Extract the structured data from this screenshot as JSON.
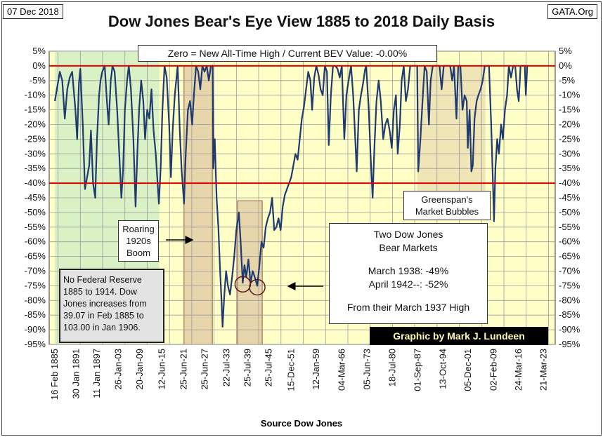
{
  "date_label": "07 Dec 2018",
  "source_label": "GATA.Org",
  "chart_data": {
    "type": "line",
    "title": "Dow Jones Bear's Eye View 1885 to 2018 Daily Basis",
    "xlabel": "Source Dow Jones",
    "ylabel": "",
    "ylim": [
      -95,
      5
    ],
    "y_ticks": [
      5,
      0,
      -5,
      -10,
      -15,
      -20,
      -25,
      -30,
      -35,
      -40,
      -45,
      -50,
      -55,
      -60,
      -65,
      -70,
      -75,
      -80,
      -85,
      -90,
      -95
    ],
    "y_tick_labels": [
      "5%",
      "0%",
      "-5%",
      "-10%",
      "-15%",
      "-20%",
      "-25%",
      "-30%",
      "-35%",
      "-40%",
      "-45%",
      "-50%",
      "-55%",
      "-60%",
      "-65%",
      "-70%",
      "-75%",
      "-80%",
      "-85%",
      "-90%",
      "-95%"
    ],
    "x_ticks": [
      "16 Feb 1885",
      "30 Jan 1891",
      "11 Jan 1897",
      "26-Jan-03",
      "20-Jan-09",
      "12-Jun-15",
      "25-Jun-21",
      "25-Jun-27",
      "22-Jul-33",
      "25-Jul-39",
      "25-Jul-45",
      "15-Dec-51",
      "12-Jan-59",
      "04-Mar-66",
      "05-Jun-73",
      "18-Jul-80",
      "01-Sep-87",
      "13-Oct-94",
      "05-Dec-01",
      "02-Feb-09",
      "24-Mar-16",
      "21-Mar-23"
    ],
    "x_tick_years": [
      1885.1,
      1891.1,
      1897.0,
      1903.1,
      1909.1,
      1915.4,
      1921.5,
      1927.5,
      1933.6,
      1939.6,
      1945.6,
      1951.9,
      1959.0,
      1966.2,
      1973.4,
      1980.5,
      1987.7,
      1994.8,
      2001.9,
      2009.1,
      2016.2,
      2023.2
    ],
    "series": [
      {
        "values": [
          [
            1885.1,
            -12
          ],
          [
            1886.5,
            -2
          ],
          [
            1887.2,
            -5
          ],
          [
            1887.9,
            -18
          ],
          [
            1888.6,
            -8
          ],
          [
            1889.3,
            -4
          ],
          [
            1890.0,
            -2
          ],
          [
            1890.9,
            -15
          ],
          [
            1891.4,
            -25
          ],
          [
            1891.9,
            -6
          ],
          [
            1892.3,
            -1
          ],
          [
            1893.0,
            -20
          ],
          [
            1893.6,
            -42
          ],
          [
            1894.2,
            -38
          ],
          [
            1894.8,
            -34
          ],
          [
            1895.3,
            -22
          ],
          [
            1895.9,
            -40
          ],
          [
            1896.5,
            -45
          ],
          [
            1897.0,
            -25
          ],
          [
            1897.6,
            -10
          ],
          [
            1898.0,
            -5
          ],
          [
            1898.5,
            -2
          ],
          [
            1899.2,
            0
          ],
          [
            1899.8,
            -12
          ],
          [
            1900.3,
            -20
          ],
          [
            1900.9,
            -5
          ],
          [
            1901.4,
            0
          ],
          [
            1902.0,
            -2
          ],
          [
            1902.7,
            -15
          ],
          [
            1903.3,
            -30
          ],
          [
            1903.9,
            -45
          ],
          [
            1904.4,
            -35
          ],
          [
            1904.9,
            -15
          ],
          [
            1905.5,
            -5
          ],
          [
            1906.0,
            0
          ],
          [
            1906.6,
            -8
          ],
          [
            1907.3,
            -25
          ],
          [
            1907.9,
            -48
          ],
          [
            1908.4,
            -30
          ],
          [
            1908.9,
            -15
          ],
          [
            1909.5,
            -5
          ],
          [
            1910.1,
            -12
          ],
          [
            1910.6,
            -25
          ],
          [
            1911.2,
            -15
          ],
          [
            1911.8,
            -18
          ],
          [
            1912.4,
            -8
          ],
          [
            1913.0,
            -22
          ],
          [
            1913.6,
            -30
          ],
          [
            1914.5,
            -47
          ],
          [
            1915.0,
            -35
          ],
          [
            1915.5,
            -15
          ],
          [
            1916.1,
            0
          ],
          [
            1916.7,
            -4
          ],
          [
            1917.4,
            -20
          ],
          [
            1917.9,
            -38
          ],
          [
            1918.4,
            -22
          ],
          [
            1919.0,
            -10
          ],
          [
            1919.8,
            0
          ],
          [
            1920.4,
            -22
          ],
          [
            1920.9,
            -35
          ],
          [
            1921.6,
            -47
          ],
          [
            1922.1,
            -30
          ],
          [
            1922.7,
            -15
          ],
          [
            1923.3,
            -12
          ],
          [
            1923.9,
            -20
          ],
          [
            1924.4,
            -10
          ],
          [
            1925.0,
            0
          ],
          [
            1925.6,
            -2
          ],
          [
            1926.2,
            -8
          ],
          [
            1926.8,
            0
          ],
          [
            1927.4,
            -2
          ],
          [
            1928.0,
            0
          ],
          [
            1928.6,
            -5
          ],
          [
            1929.2,
            0
          ],
          [
            1929.7,
            0
          ],
          [
            1929.9,
            -35
          ],
          [
            1930.3,
            -25
          ],
          [
            1930.8,
            -45
          ],
          [
            1931.3,
            -55
          ],
          [
            1931.8,
            -70
          ],
          [
            1932.2,
            -80
          ],
          [
            1932.5,
            -89
          ],
          [
            1933.0,
            -78
          ],
          [
            1933.5,
            -70
          ],
          [
            1934.0,
            -75
          ],
          [
            1934.6,
            -78
          ],
          [
            1935.2,
            -72
          ],
          [
            1935.8,
            -65
          ],
          [
            1936.4,
            -56
          ],
          [
            1937.1,
            -50
          ],
          [
            1937.6,
            -60
          ],
          [
            1938.2,
            -74
          ],
          [
            1938.7,
            -68
          ],
          [
            1939.2,
            -72
          ],
          [
            1939.8,
            -66
          ],
          [
            1940.4,
            -74
          ],
          [
            1941.0,
            -70
          ],
          [
            1941.6,
            -72
          ],
          [
            1942.3,
            -75
          ],
          [
            1942.9,
            -68
          ],
          [
            1943.5,
            -60
          ],
          [
            1944.1,
            -62
          ],
          [
            1944.7,
            -55
          ],
          [
            1945.3,
            -52
          ],
          [
            1945.9,
            -50
          ],
          [
            1946.5,
            -45
          ],
          [
            1947.1,
            -56
          ],
          [
            1947.7,
            -55
          ],
          [
            1948.3,
            -52
          ],
          [
            1948.9,
            -56
          ],
          [
            1949.5,
            -48
          ],
          [
            1950.1,
            -44
          ],
          [
            1950.7,
            -42
          ],
          [
            1951.3,
            -40
          ],
          [
            1951.9,
            -38
          ],
          [
            1952.5,
            -34
          ],
          [
            1953.1,
            -30
          ],
          [
            1953.7,
            -32
          ],
          [
            1954.3,
            -25
          ],
          [
            1954.9,
            -18
          ],
          [
            1955.5,
            -14
          ],
          [
            1956.1,
            -8
          ],
          [
            1956.7,
            -2
          ],
          [
            1957.3,
            -5
          ],
          [
            1957.8,
            -15
          ],
          [
            1958.4,
            -4
          ],
          [
            1959.0,
            0
          ],
          [
            1959.6,
            -3
          ],
          [
            1960.2,
            -8
          ],
          [
            1960.8,
            -10
          ],
          [
            1961.4,
            0
          ],
          [
            1962.0,
            -2
          ],
          [
            1962.5,
            -27
          ],
          [
            1963.1,
            -10
          ],
          [
            1963.7,
            0
          ],
          [
            1964.3,
            0
          ],
          [
            1965.0,
            -1
          ],
          [
            1965.6,
            -4
          ],
          [
            1966.2,
            0
          ],
          [
            1966.9,
            -25
          ],
          [
            1967.5,
            -10
          ],
          [
            1968.1,
            -5
          ],
          [
            1968.8,
            0
          ],
          [
            1969.4,
            -10
          ],
          [
            1970.0,
            -25
          ],
          [
            1970.4,
            -36
          ],
          [
            1971.0,
            -15
          ],
          [
            1971.6,
            -10
          ],
          [
            1972.2,
            -6
          ],
          [
            1972.8,
            -1
          ],
          [
            1973.1,
            0
          ],
          [
            1973.8,
            -15
          ],
          [
            1974.3,
            -30
          ],
          [
            1974.9,
            -45
          ],
          [
            1975.4,
            -28
          ],
          [
            1976.0,
            -12
          ],
          [
            1976.6,
            -5
          ],
          [
            1977.2,
            -12
          ],
          [
            1977.9,
            -25
          ],
          [
            1978.5,
            -20
          ],
          [
            1979.1,
            -18
          ],
          [
            1979.7,
            -22
          ],
          [
            1980.3,
            -28
          ],
          [
            1980.9,
            -15
          ],
          [
            1981.5,
            -10
          ],
          [
            1982.0,
            -30
          ],
          [
            1982.6,
            -20
          ],
          [
            1983.1,
            -5
          ],
          [
            1983.7,
            0
          ],
          [
            1984.3,
            -12
          ],
          [
            1984.9,
            -8
          ],
          [
            1985.5,
            0
          ],
          [
            1986.2,
            0
          ],
          [
            1986.8,
            0
          ],
          [
            1987.5,
            0
          ],
          [
            1987.8,
            -36
          ],
          [
            1988.4,
            -25
          ],
          [
            1989.0,
            -12
          ],
          [
            1989.6,
            0
          ],
          [
            1990.2,
            -2
          ],
          [
            1990.8,
            -20
          ],
          [
            1991.3,
            -5
          ],
          [
            1991.9,
            0
          ],
          [
            1992.6,
            0
          ],
          [
            1993.2,
            0
          ],
          [
            1993.8,
            0
          ],
          [
            1994.4,
            -8
          ],
          [
            1995.0,
            0
          ],
          [
            1995.6,
            0
          ],
          [
            1996.2,
            0
          ],
          [
            1996.8,
            0
          ],
          [
            1997.4,
            -5
          ],
          [
            1997.9,
            0
          ],
          [
            1998.6,
            -18
          ],
          [
            1999.1,
            0
          ],
          [
            1999.7,
            0
          ],
          [
            2000.3,
            -15
          ],
          [
            2000.9,
            -10
          ],
          [
            2001.5,
            -12
          ],
          [
            2001.8,
            -28
          ],
          [
            2002.3,
            -15
          ],
          [
            2002.8,
            -36
          ],
          [
            2003.2,
            -34
          ],
          [
            2003.7,
            -18
          ],
          [
            2004.3,
            -12
          ],
          [
            2004.8,
            -10
          ],
          [
            2005.4,
            -8
          ],
          [
            2006.0,
            -5
          ],
          [
            2006.6,
            0
          ],
          [
            2007.2,
            0
          ],
          [
            2007.8,
            0
          ],
          [
            2008.4,
            -20
          ],
          [
            2008.9,
            -40
          ],
          [
            2009.2,
            -53
          ],
          [
            2009.6,
            -35
          ],
          [
            2010.1,
            -25
          ],
          [
            2010.6,
            -30
          ],
          [
            2011.2,
            -20
          ],
          [
            2011.7,
            -25
          ],
          [
            2012.3,
            -15
          ],
          [
            2012.9,
            -10
          ],
          [
            2013.4,
            0
          ],
          [
            2014.0,
            -4
          ],
          [
            2014.6,
            0
          ],
          [
            2015.2,
            0
          ],
          [
            2015.7,
            -8
          ],
          [
            2016.2,
            -12
          ],
          [
            2016.7,
            0
          ],
          [
            2017.3,
            0
          ],
          [
            2017.9,
            0
          ],
          [
            2018.2,
            -10
          ],
          [
            2018.6,
            0
          ],
          [
            2018.9,
            0
          ]
        ]
      }
    ],
    "reference_lines": [
      0,
      -40
    ],
    "annotations": {
      "zero_box": "Zero = New All-Time High / Current BEV Value: -0.00%",
      "roaring": [
        "Roaring",
        "1920s",
        "Boom"
      ],
      "greenspan": [
        "Greenspan's",
        "Market Bubbles"
      ],
      "two_dow": [
        "Two Dow Jones",
        "Bear Markets",
        "March 1938: -49%",
        "April 1942--: -52%",
        "From their March 1937 High"
      ],
      "nofed": "No Federal Reserve 1885  to 1914.   Dow Jones increases from 39.07  in Feb 1885  to 103.00  in Jan 1906.",
      "credit": "Graphic by Mark J. Lundeen"
    },
    "grid": true,
    "colors": {
      "line": "#1f3a6e",
      "reference": "#e00000",
      "plot_bg": "#ffffc8",
      "shade_green": "#d6f0c4",
      "shade_tan": "#e3cfa8",
      "shade_border": "#7a3c2a"
    }
  }
}
